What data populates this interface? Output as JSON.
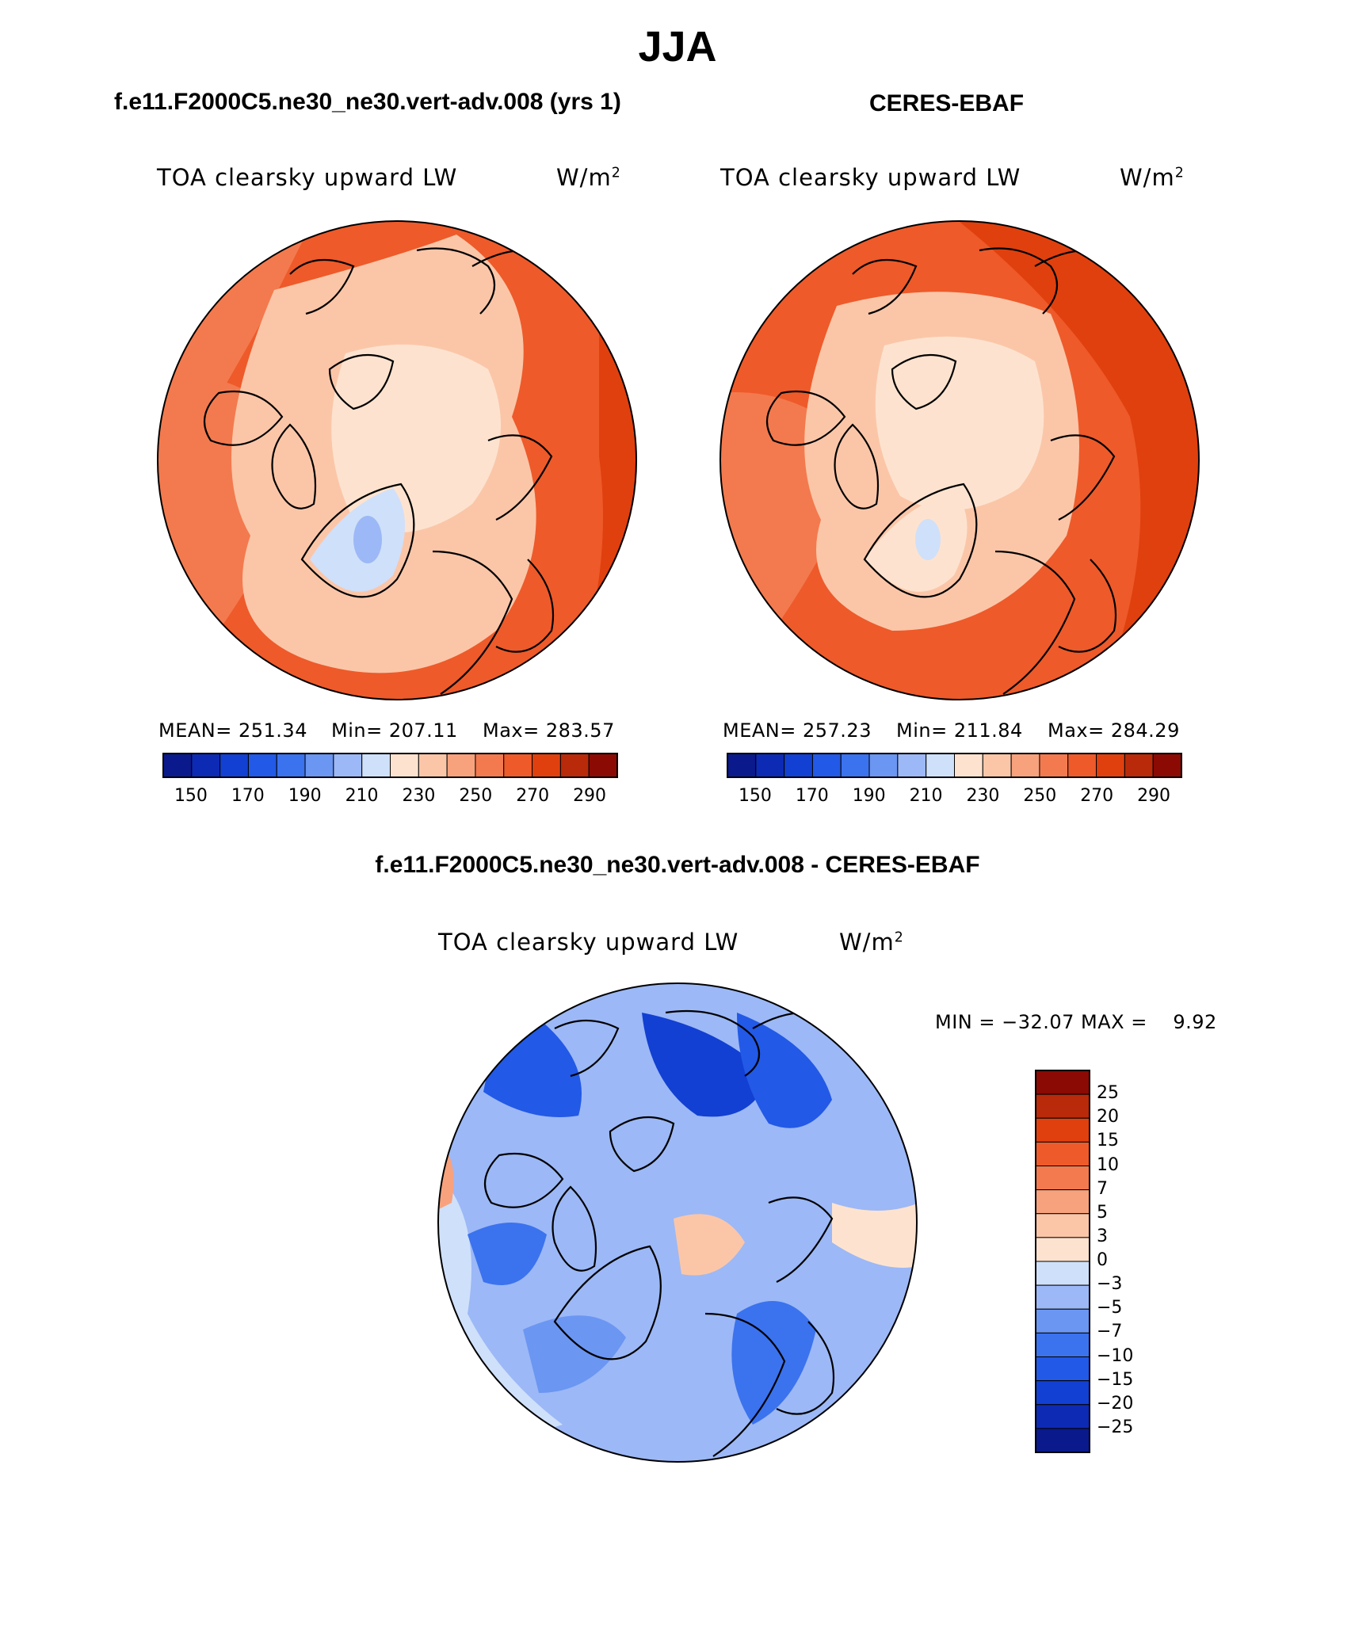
{
  "figure": {
    "season": "JJA"
  },
  "panels": [
    {
      "case_title": "f.e11.F2000C5.ne30_ne30.vert-adv.008 (yrs 1)",
      "variable": "TOA clearsky upward LW",
      "units_base": "W/m",
      "units_exp": "2",
      "stats": {
        "mean": "MEAN= 251.34",
        "min": "Min= 207.11",
        "max": "Max= 283.57"
      },
      "colorbar_ticks": [
        "150",
        "170",
        "190",
        "210",
        "230",
        "250",
        "270",
        "290"
      ]
    },
    {
      "case_title": "CERES-EBAF",
      "variable": "TOA clearsky upward LW",
      "units_base": "W/m",
      "units_exp": "2",
      "stats": {
        "mean": "MEAN= 257.23",
        "min": "Min= 211.84",
        "max": "Max= 284.29"
      },
      "colorbar_ticks": [
        "150",
        "170",
        "190",
        "210",
        "230",
        "250",
        "270",
        "290"
      ]
    }
  ],
  "diff_panel": {
    "case_title": "f.e11.F2000C5.ne30_ne30.vert-adv.008 - CERES-EBAF",
    "variable": "TOA clearsky upward LW",
    "units_base": "W/m",
    "units_exp": "2",
    "minmax": "MIN = −32.07 MAX =    9.92",
    "colorbar_ticks": [
      "25",
      "20",
      "15",
      "10",
      "7",
      "5",
      "3",
      "0",
      "−3",
      "−5",
      "−7",
      "−10",
      "−15",
      "−20",
      "−25"
    ]
  },
  "colors": {
    "abs_scale": [
      "#0a1a8c",
      "#0d2ab4",
      "#1240d2",
      "#2259e6",
      "#3b72ee",
      "#6b96f2",
      "#9cb8f6",
      "#cfe0fa",
      "#fde3cf",
      "#fbc6a8",
      "#f7a27d",
      "#f37a4e",
      "#ee5a2a",
      "#e0400e",
      "#b82a0a",
      "#8c0a04"
    ],
    "diff_scale": [
      "#0a1a8c",
      "#0d2ab4",
      "#1240d2",
      "#2259e6",
      "#3b72ee",
      "#6b96f2",
      "#9cb8f6",
      "#cfe0fa",
      "#fde3cf",
      "#fbc6a8",
      "#f7a27d",
      "#f37a4e",
      "#ee5a2a",
      "#e0400e",
      "#b82a0a",
      "#8c0a04"
    ]
  }
}
